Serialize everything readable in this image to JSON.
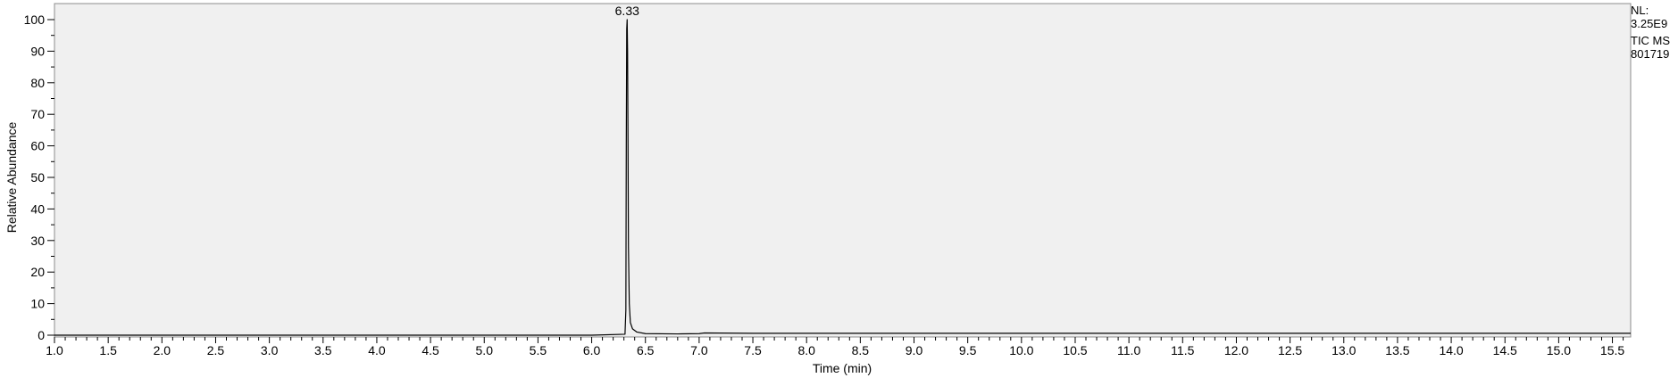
{
  "info": {
    "nl_label": "NL:",
    "nl_value": "3.25E9",
    "trace": "TIC  MS",
    "sample": "801719"
  },
  "chart_data": {
    "type": "line",
    "xlabel": "Time (min)",
    "ylabel": "Relative Abundance",
    "xlim": [
      1.0,
      15.67
    ],
    "ylim": [
      0,
      104
    ],
    "x_ticks": [
      1.0,
      1.5,
      2.0,
      2.5,
      3.0,
      3.5,
      4.0,
      4.5,
      5.0,
      5.5,
      6.0,
      6.5,
      7.0,
      7.5,
      8.0,
      8.5,
      9.0,
      9.5,
      10.0,
      10.5,
      11.0,
      11.5,
      12.0,
      12.5,
      13.0,
      13.5,
      14.0,
      14.5,
      15.0,
      15.5
    ],
    "x_tick_labels": [
      "1.0",
      "1.5",
      "2.0",
      "2.5",
      "3.0",
      "3.5",
      "4.0",
      "4.5",
      "5.0",
      "5.5",
      "6.0",
      "6.5",
      "7.0",
      "7.5",
      "8.0",
      "8.5",
      "9.0",
      "9.5",
      "10.0",
      "10.5",
      "11.0",
      "11.5",
      "12.0",
      "12.5",
      "13.0",
      "13.5",
      "14.0",
      "14.5",
      "15.0",
      "15.5"
    ],
    "y_ticks": [
      0,
      10,
      20,
      30,
      40,
      50,
      60,
      70,
      80,
      90,
      100
    ],
    "y_tick_labels": [
      "0",
      "10",
      "20",
      "30",
      "40",
      "50",
      "60",
      "70",
      "80",
      "90",
      "100"
    ],
    "grid": false,
    "series": [
      {
        "x": [
          1.0,
          6.0,
          6.31,
          6.318,
          6.322,
          6.326,
          6.33,
          6.334,
          6.338,
          6.342,
          6.35,
          6.36,
          6.38,
          6.42,
          6.5,
          6.8,
          7.0,
          7.05,
          7.5,
          10.0,
          15.67
        ],
        "y": [
          0,
          0,
          0.3,
          8,
          60,
          97,
          100,
          90,
          62,
          28,
          10,
          4,
          2,
          1,
          0.5,
          0.4,
          0.5,
          0.7,
          0.6,
          0.6,
          0.6
        ]
      }
    ],
    "peak_labels": [
      {
        "x": 6.33,
        "y": 100,
        "label": "6.33"
      }
    ]
  }
}
